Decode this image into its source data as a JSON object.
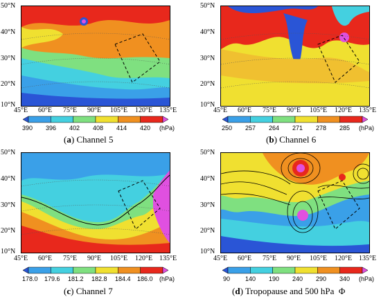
{
  "lat_labels": [
    "50°N",
    "40°N",
    "30°N",
    "20°N",
    "10°N"
  ],
  "lon_labels": [
    "45°E",
    "60°E",
    "75°E",
    "90°E",
    "105°E",
    "120°E",
    "135°E"
  ],
  "panels": [
    {
      "id": "a",
      "caption_letter": "a",
      "caption_text": "Channel 5",
      "unit": "(hPa)",
      "colorbar_ticks": [
        "390",
        "396",
        "402",
        "408",
        "414",
        "420"
      ],
      "colors": [
        "#2a55d6",
        "#3aa0e8",
        "#44d0e0",
        "#7fe080",
        "#f0e030",
        "#f09020",
        "#e8281c",
        "#e050e0"
      ]
    },
    {
      "id": "b",
      "caption_letter": "b",
      "caption_text": "Channel 6",
      "unit": "(hPa)",
      "colorbar_ticks": [
        "250",
        "257",
        "264",
        "271",
        "278",
        "285"
      ],
      "colors": [
        "#2a55d6",
        "#3aa0e8",
        "#44d0e0",
        "#7fe080",
        "#f0e030",
        "#f09020",
        "#e8281c",
        "#e050e0"
      ]
    },
    {
      "id": "c",
      "caption_letter": "c",
      "caption_text": "Channel 7",
      "unit": "(hPa)",
      "colorbar_ticks": [
        "178.0",
        "179.6",
        "181.2",
        "182.8",
        "184.4",
        "186.0"
      ],
      "colors": [
        "#2a55d6",
        "#3aa0e8",
        "#44d0e0",
        "#7fe080",
        "#f0e030",
        "#f09020",
        "#e8281c",
        "#e050e0"
      ]
    },
    {
      "id": "d",
      "caption_letter": "d",
      "caption_text": "Tropopause and 500 hPa",
      "caption_symbol": "Φ",
      "unit": "(hPa)",
      "colorbar_ticks": [
        "90",
        "140",
        "190",
        "240",
        "290",
        "340"
      ],
      "colors": [
        "#2a55d6",
        "#3aa0e8",
        "#44d0e0",
        "#7fe080",
        "#f0e030",
        "#f09020",
        "#e8281c",
        "#e050e0"
      ]
    }
  ]
}
